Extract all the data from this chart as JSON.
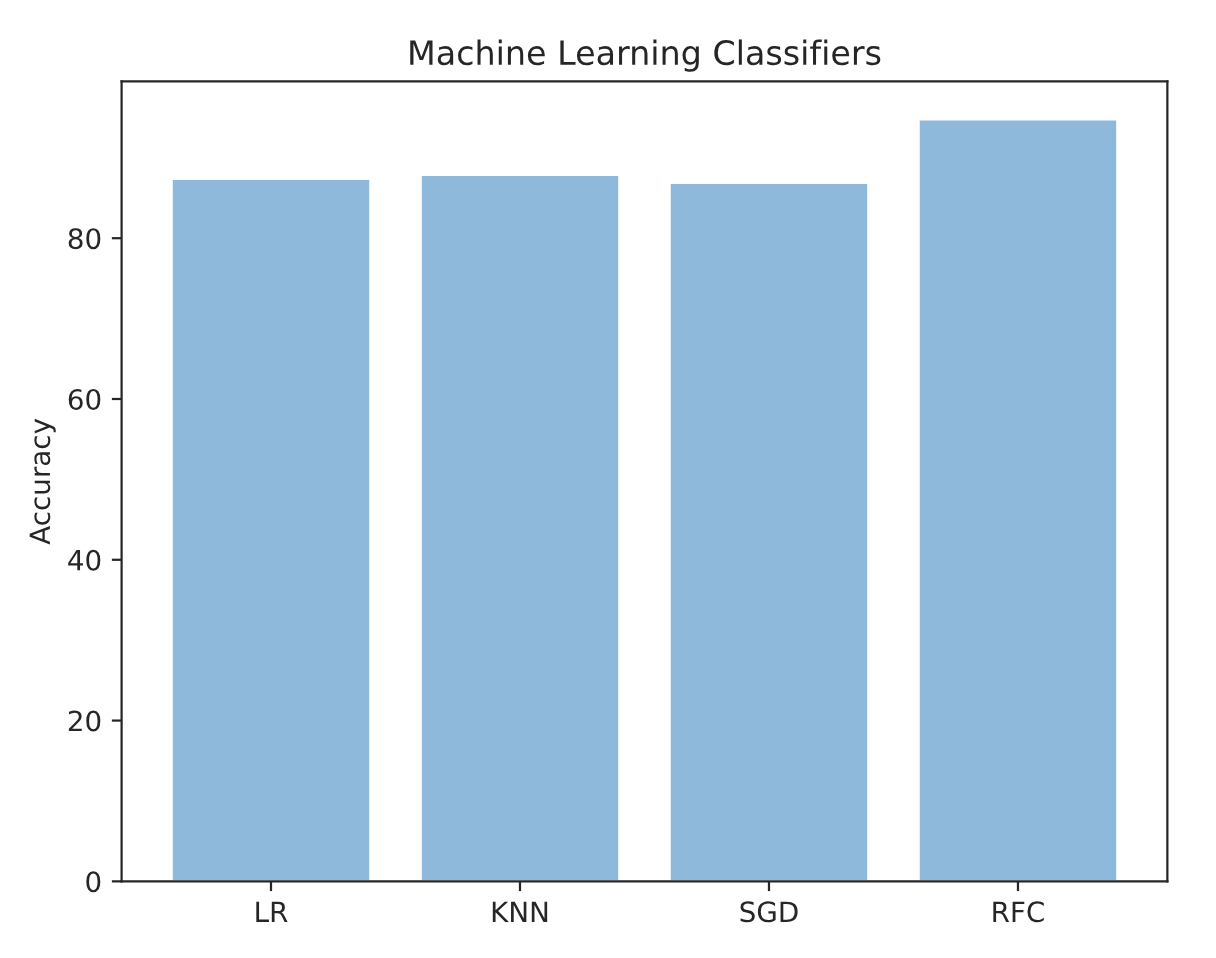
{
  "chart_data": {
    "type": "bar",
    "title": "Machine Learning Classifiers",
    "ylabel": "Accuracy",
    "categories": [
      "LR",
      "KNN",
      "SGD",
      "RFC"
    ],
    "values": [
      87.4,
      87.9,
      86.9,
      94.8
    ],
    "color": "#8fb9da",
    "ylim": [
      0,
      99.5
    ],
    "yticks": [
      0,
      20,
      40,
      60,
      80
    ],
    "grid": false,
    "legend": false
  }
}
